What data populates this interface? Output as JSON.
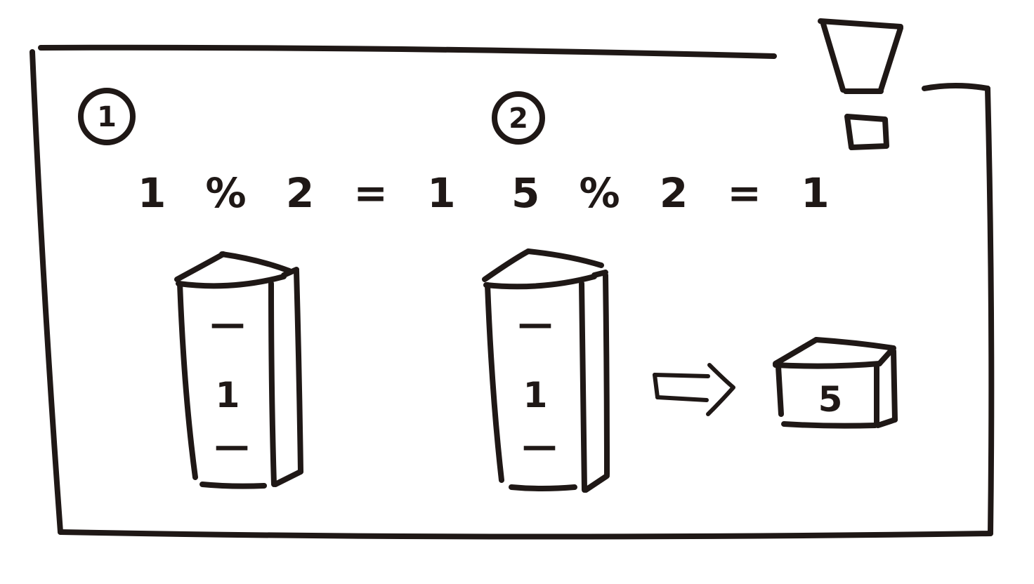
{
  "steps": [
    {
      "number": "1",
      "equation": "1 % 2 = 1",
      "stack_cells": [
        "—",
        "1",
        "—"
      ]
    },
    {
      "number": "2",
      "equation": "5 % 2 = 1",
      "stack_cells": [
        "—",
        "1",
        "—"
      ],
      "output_box": "5"
    }
  ],
  "icons": {
    "warning": "exclamation-icon",
    "arrow": "right-arrow-icon"
  },
  "colors": {
    "ink": "#1f1816",
    "paper": "#ffffff"
  }
}
